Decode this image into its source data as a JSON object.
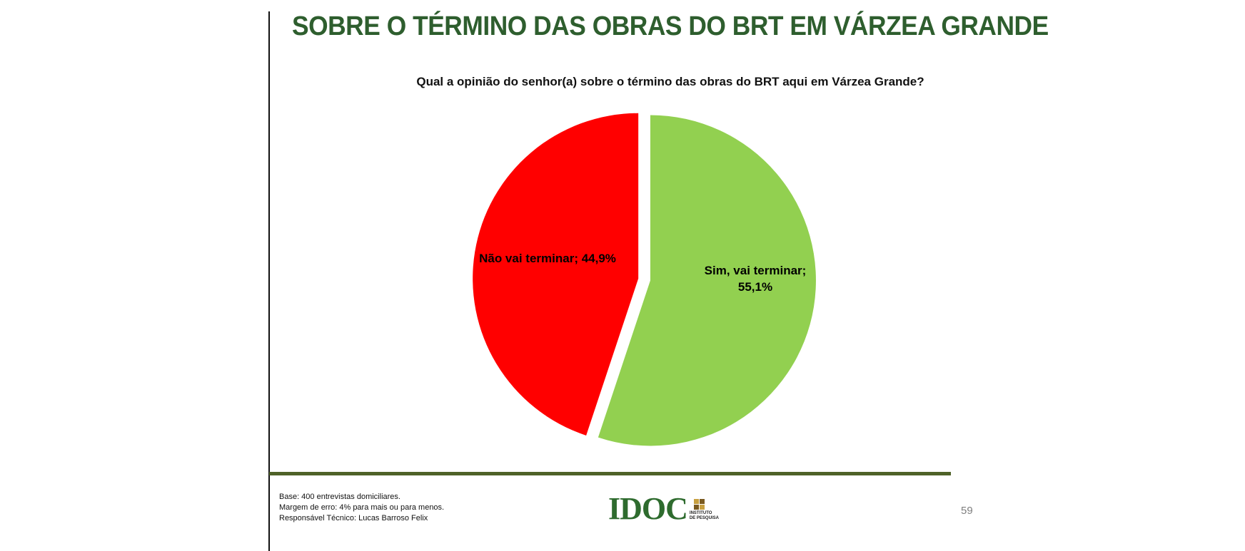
{
  "slide": {
    "title": "SOBRE O TÉRMINO DAS OBRAS DO BRT EM VÁRZEA GRANDE",
    "title_color": "#2e5e2e",
    "question": "Qual a opinião do senhor(a) sobre o término das obras do BRT aqui em Várzea Grande?",
    "footer": {
      "base": "Base: 400 entrevistas domiciliares.",
      "margin": "Margem de erro: 4% para mais ou para menos.",
      "responsible": "Responsável Técnico: Lucas Barroso Felix"
    },
    "logo": {
      "text": "IDOC",
      "sub_line1": "INSTITUTO",
      "sub_line2": "DE PESQUISA",
      "color": "#2e6b2e",
      "square_colors": [
        "#c8a040",
        "#7a5a20",
        "#7a5a20",
        "#c8a040"
      ]
    },
    "page_number": "59",
    "rule_color": "#4f6228"
  },
  "chart_data": {
    "type": "pie",
    "title": "Qual a opinião do senhor(a) sobre o término das obras do BRT aqui em Várzea Grande?",
    "slices": [
      {
        "label": "Sim, vai terminar",
        "value": 55.1,
        "display": "55,1%",
        "color": "#92d050",
        "data_label_lines": [
          "Sim, vai terminar;",
          "55,1%"
        ],
        "exploded": false
      },
      {
        "label": "Não vai terminar",
        "value": 44.9,
        "display": "44,9%",
        "color": "#ff0000",
        "data_label_lines": [
          "Não vai terminar; 44,9%"
        ],
        "exploded": true
      }
    ],
    "start": "12 o'clock",
    "direction": "clockwise",
    "legend": "none"
  }
}
